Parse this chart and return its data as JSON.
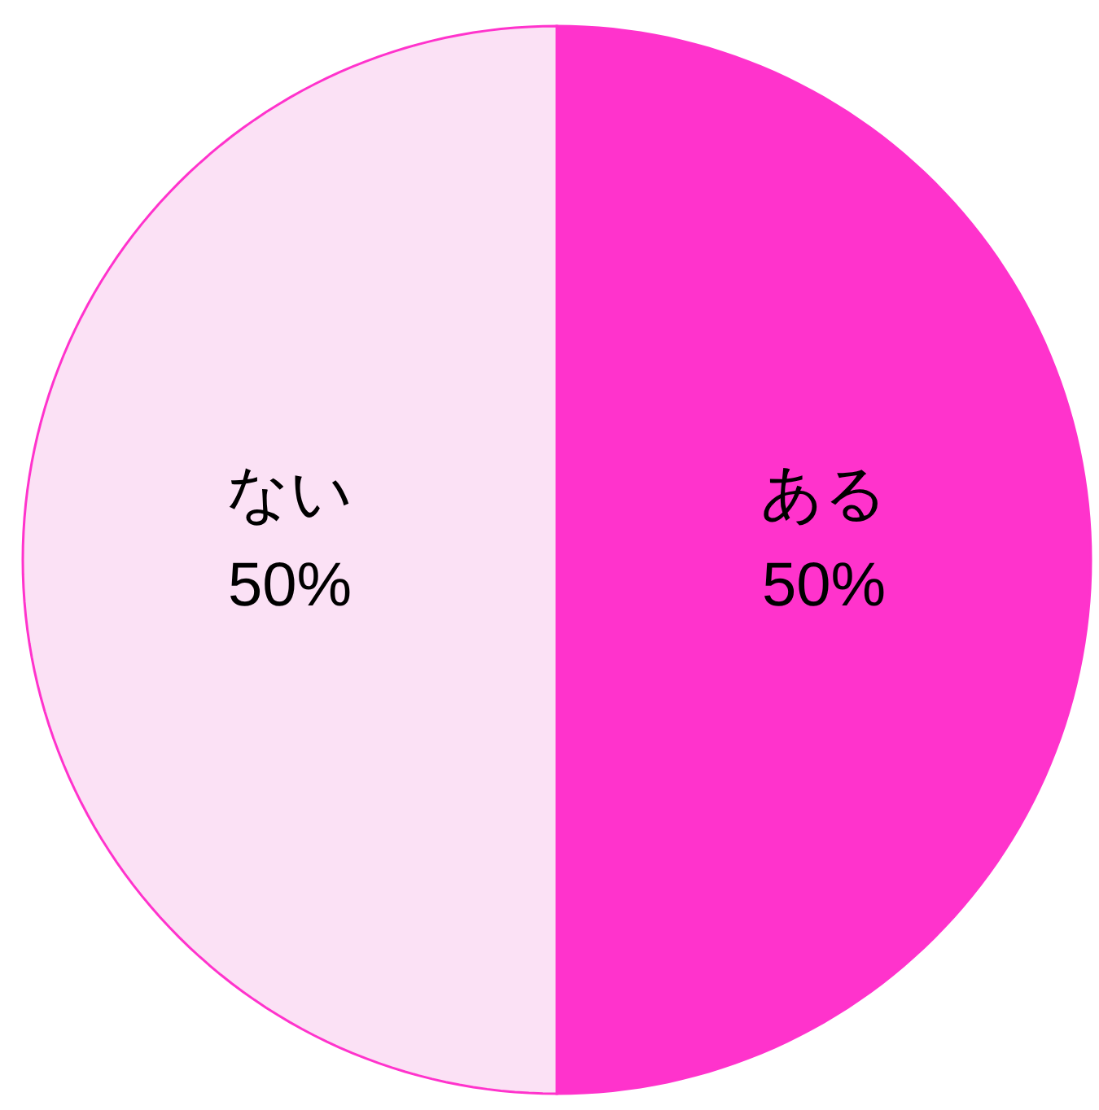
{
  "chart_data": {
    "type": "pie",
    "categories": [
      "ある",
      "ない"
    ],
    "values": [
      50,
      50
    ],
    "colors": [
      "#ff33cc",
      "#fbe1f5"
    ],
    "value_labels": [
      "50%",
      "50%"
    ]
  }
}
